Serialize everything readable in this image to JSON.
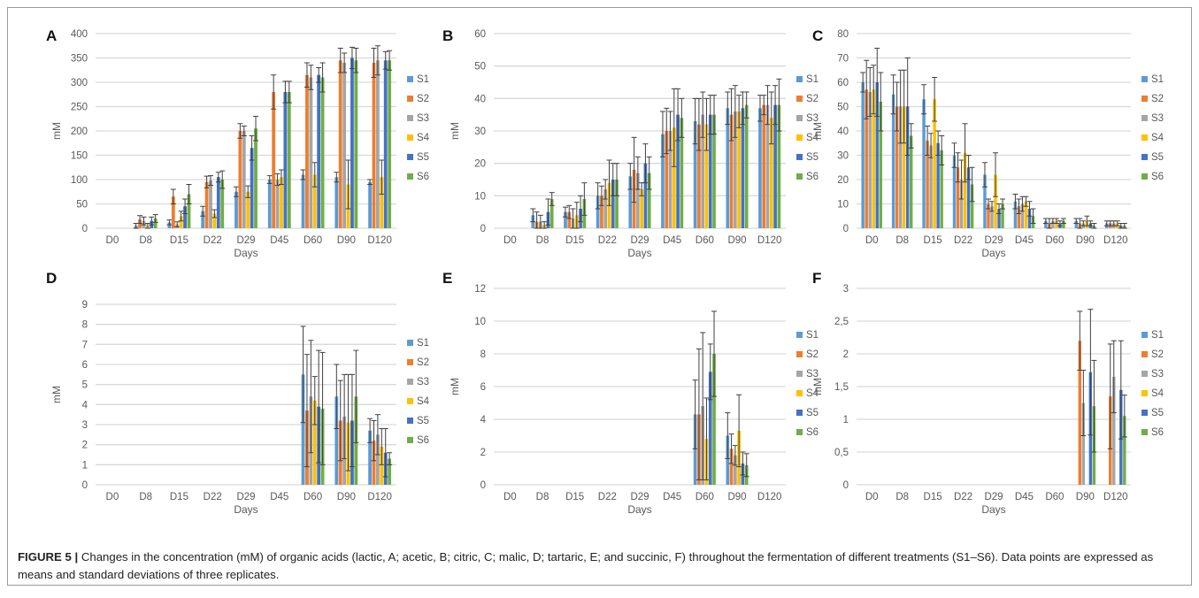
{
  "figure": {
    "caption_label": "FIGURE 5 |",
    "caption_text": "Changes in the concentration (mM) of organic acids (lactic, A; acetic, B; citric, C; malic, D; tartaric, E; and succinic, F) throughout the fermentation of different treatments (S1–S6). Data points are expressed as means and standard deviations of three replicates."
  },
  "colors": {
    "S1": "#5b9bd5",
    "S2": "#ed7d31",
    "S3": "#a5a5a5",
    "S4": "#ffc000",
    "S5": "#4472c4",
    "S6": "#70ad47",
    "grid": "#d9d9d9",
    "axis_text": "#595959",
    "error_bar": "#404040"
  },
  "chart_data": [
    {
      "panel": "A",
      "type": "bar",
      "xlabel": "Days",
      "ylabel": "mM",
      "ylim": [
        0,
        400
      ],
      "yticks": [
        0,
        50,
        100,
        150,
        200,
        250,
        300,
        350,
        400
      ],
      "ytick_labels": [
        "0",
        "50",
        "100",
        "150",
        "200",
        "250",
        "300",
        "350",
        "400"
      ],
      "categories": [
        "D0",
        "D8",
        "D15",
        "D22",
        "D29",
        "D45",
        "D60",
        "D90",
        "D120"
      ],
      "legend_position": "right",
      "grid": true,
      "series": [
        {
          "name": "S1",
          "values": [
            0,
            5,
            12,
            35,
            75,
            100,
            110,
            105,
            95
          ],
          "errors": [
            0,
            5,
            5,
            10,
            10,
            8,
            10,
            10,
            5
          ]
        },
        {
          "name": "S2",
          "values": [
            0,
            18,
            65,
            95,
            200,
            280,
            315,
            345,
            340
          ],
          "errors": [
            0,
            8,
            15,
            12,
            15,
            35,
            25,
            25,
            30
          ]
        },
        {
          "name": "S3",
          "values": [
            0,
            15,
            8,
            98,
            200,
            100,
            310,
            340,
            345
          ],
          "errors": [
            0,
            8,
            5,
            10,
            10,
            12,
            25,
            20,
            30
          ]
        },
        {
          "name": "S4",
          "values": [
            0,
            5,
            25,
            30,
            75,
            105,
            110,
            90,
            105
          ],
          "errors": [
            0,
            5,
            10,
            8,
            12,
            15,
            25,
            50,
            35
          ]
        },
        {
          "name": "S5",
          "values": [
            0,
            15,
            45,
            105,
            165,
            280,
            315,
            350,
            345
          ],
          "errors": [
            0,
            8,
            15,
            10,
            25,
            22,
            15,
            22,
            18
          ]
        },
        {
          "name": "S6",
          "values": [
            0,
            20,
            70,
            100,
            205,
            280,
            310,
            345,
            345
          ],
          "errors": [
            0,
            8,
            20,
            18,
            25,
            22,
            30,
            25,
            20
          ]
        }
      ]
    },
    {
      "panel": "B",
      "type": "bar",
      "xlabel": "Days",
      "ylabel": "mM",
      "ylim": [
        0,
        60
      ],
      "yticks": [
        0,
        10,
        20,
        30,
        40,
        50,
        60
      ],
      "ytick_labels": [
        "0",
        "10",
        "20",
        "30",
        "40",
        "50",
        "60"
      ],
      "categories": [
        "D0",
        "D8",
        "D15",
        "D22",
        "D29",
        "D45",
        "D60",
        "D90",
        "D120"
      ],
      "legend_position": "right",
      "grid": true,
      "series": [
        {
          "name": "S1",
          "values": [
            0,
            4,
            5,
            10,
            16,
            29,
            33,
            37,
            37
          ],
          "errors": [
            0,
            2,
            1.5,
            4,
            4,
            7,
            7,
            5,
            4
          ]
        },
        {
          "name": "S2",
          "values": [
            0,
            2,
            5,
            10,
            18,
            30,
            32,
            35,
            38
          ],
          "errors": [
            0,
            3,
            2,
            3,
            10,
            7,
            8,
            8,
            3
          ]
        },
        {
          "name": "S3",
          "values": [
            0,
            2,
            3,
            12,
            17,
            30,
            35,
            36,
            38
          ],
          "errors": [
            0,
            2,
            3,
            3,
            5,
            6,
            7,
            8,
            6
          ]
        },
        {
          "name": "S4",
          "values": [
            0,
            1,
            4,
            14,
            12,
            31,
            32,
            36,
            34
          ],
          "errors": [
            0,
            1,
            4,
            7,
            2,
            12,
            8,
            5,
            8
          ]
        },
        {
          "name": "S5",
          "values": [
            0,
            5,
            6,
            15,
            20,
            35,
            35,
            37,
            38
          ],
          "errors": [
            0,
            4,
            4,
            5,
            6,
            8,
            6,
            5,
            6
          ]
        },
        {
          "name": "S6",
          "values": [
            0,
            9,
            9,
            15,
            17,
            34,
            35,
            38,
            38
          ],
          "errors": [
            0,
            2,
            5,
            5,
            5,
            6,
            6,
            4,
            8
          ]
        }
      ]
    },
    {
      "panel": "C",
      "type": "bar",
      "xlabel": "Days",
      "ylabel": "mM",
      "ylim": [
        0,
        80
      ],
      "yticks": [
        0,
        10,
        20,
        30,
        40,
        50,
        60,
        70,
        80
      ],
      "ytick_labels": [
        "0",
        "10",
        "20",
        "30",
        "40",
        "50",
        "60",
        "70",
        "80"
      ],
      "categories": [
        "D0",
        "D8",
        "D15",
        "D22",
        "D29",
        "D45",
        "D60",
        "D90",
        "D120"
      ],
      "legend_position": "right",
      "grid": true,
      "series": [
        {
          "name": "S1",
          "values": [
            60,
            55,
            53,
            30,
            22,
            11,
            3,
            3,
            2
          ],
          "errors": [
            4,
            8,
            6,
            5,
            5,
            3,
            1,
            1,
            1
          ]
        },
        {
          "name": "S2",
          "values": [
            57,
            50,
            36,
            25,
            10,
            9,
            2,
            2,
            2
          ],
          "errors": [
            12,
            10,
            6,
            6,
            2,
            3,
            2,
            2,
            1
          ]
        },
        {
          "name": "S3",
          "values": [
            56,
            50,
            34,
            20,
            9,
            10,
            3,
            2,
            2
          ],
          "errors": [
            10,
            15,
            5,
            8,
            2,
            3,
            1,
            1,
            1
          ]
        },
        {
          "name": "S4",
          "values": [
            57,
            50,
            53,
            31,
            22,
            11,
            3,
            3,
            2
          ],
          "errors": [
            10,
            15,
            9,
            12,
            9,
            2,
            1,
            2,
            1
          ]
        },
        {
          "name": "S5",
          "values": [
            60,
            50,
            35,
            25,
            8,
            8,
            2,
            2,
            1
          ],
          "errors": [
            14,
            20,
            5,
            5,
            2,
            3,
            1,
            1,
            1
          ]
        },
        {
          "name": "S6",
          "values": [
            52,
            38,
            32,
            18,
            10,
            5,
            3,
            1,
            1
          ],
          "errors": [
            12,
            5,
            6,
            7,
            2,
            3,
            1,
            1,
            1
          ]
        }
      ]
    },
    {
      "panel": "D",
      "type": "bar",
      "xlabel": "Days",
      "ylabel": "mM",
      "ylim": [
        0,
        9
      ],
      "yticks": [
        0,
        1,
        2,
        3,
        4,
        5,
        6,
        7,
        8,
        9
      ],
      "ytick_labels": [
        "0",
        "1",
        "2",
        "3",
        "4",
        "5",
        "6",
        "7",
        "8",
        "9"
      ],
      "categories": [
        "D0",
        "D8",
        "D15",
        "D22",
        "D29",
        "D45",
        "D60",
        "D90",
        "D120"
      ],
      "legend_position": "right",
      "grid": true,
      "series": [
        {
          "name": "S1",
          "values": [
            0,
            0,
            0,
            0,
            0,
            0,
            5.5,
            4.4,
            2.7
          ],
          "errors": [
            0,
            0,
            0,
            0,
            0,
            0,
            2.4,
            1.6,
            0.6
          ]
        },
        {
          "name": "S2",
          "values": [
            0,
            0,
            0,
            0,
            0,
            0,
            3.7,
            3.2,
            2.2
          ],
          "errors": [
            0,
            0,
            0,
            0,
            0,
            0,
            2.8,
            2.0,
            1.0
          ]
        },
        {
          "name": "S3",
          "values": [
            0,
            0,
            0,
            0,
            0,
            0,
            4.4,
            3.4,
            2.5
          ],
          "errors": [
            0,
            0,
            0,
            0,
            0,
            0,
            2.8,
            2.1,
            1.0
          ]
        },
        {
          "name": "S4",
          "values": [
            0,
            0,
            0,
            0,
            0,
            0,
            4.2,
            3.1,
            1.9
          ],
          "errors": [
            0,
            0,
            0,
            0,
            0,
            0,
            1.2,
            2.4,
            0.9
          ]
        },
        {
          "name": "S5",
          "values": [
            0,
            0,
            0,
            0,
            0,
            0,
            3.9,
            3.2,
            1.6
          ],
          "errors": [
            0,
            0,
            0,
            0,
            0,
            0,
            2.8,
            2.3,
            1.2
          ]
        },
        {
          "name": "S6",
          "values": [
            0,
            0,
            0,
            0,
            0,
            0,
            3.8,
            4.4,
            1.3
          ],
          "errors": [
            0,
            0,
            0,
            0,
            0,
            0,
            2.8,
            2.3,
            0.3
          ]
        }
      ]
    },
    {
      "panel": "E",
      "type": "bar",
      "xlabel": "Days",
      "ylabel": "mM",
      "ylim": [
        0,
        12
      ],
      "yticks": [
        0,
        2,
        4,
        6,
        8,
        10,
        12
      ],
      "ytick_labels": [
        "0",
        "2",
        "4",
        "6",
        "8",
        "10",
        "12"
      ],
      "categories": [
        "D0",
        "D8",
        "D15",
        "D22",
        "D29",
        "D45",
        "D60",
        "D90",
        "D120"
      ],
      "legend_position": "right",
      "grid": true,
      "series": [
        {
          "name": "S1",
          "values": [
            0,
            0,
            0,
            0,
            0,
            0,
            4.3,
            3.0,
            0
          ],
          "errors": [
            0,
            0,
            0,
            0,
            0,
            0,
            2.1,
            1.4,
            0
          ]
        },
        {
          "name": "S2",
          "values": [
            0,
            0,
            0,
            0,
            0,
            0,
            4.3,
            2.2,
            0
          ],
          "errors": [
            0,
            0,
            0,
            0,
            0,
            0,
            4.0,
            0.9,
            0
          ]
        },
        {
          "name": "S3",
          "values": [
            0,
            0,
            0,
            0,
            0,
            0,
            4.8,
            1.8,
            0
          ],
          "errors": [
            0,
            0,
            0,
            0,
            0,
            0,
            4.5,
            0.6,
            0
          ]
        },
        {
          "name": "S4",
          "values": [
            0,
            0,
            0,
            0,
            0,
            0,
            2.8,
            3.3,
            0
          ],
          "errors": [
            0,
            0,
            0,
            0,
            0,
            0,
            2.5,
            2.2,
            0
          ]
        },
        {
          "name": "S5",
          "values": [
            0,
            0,
            0,
            0,
            0,
            0,
            6.9,
            1.3,
            0
          ],
          "errors": [
            0,
            0,
            0,
            0,
            0,
            0,
            1.7,
            0.7,
            0
          ]
        },
        {
          "name": "S6",
          "values": [
            0,
            0,
            0,
            0,
            0,
            0,
            8.0,
            1.2,
            0
          ],
          "errors": [
            0,
            0,
            0,
            0,
            0,
            0,
            2.6,
            0.7,
            0
          ]
        }
      ]
    },
    {
      "panel": "F",
      "type": "bar",
      "xlabel": "Days",
      "ylabel": "mM",
      "ylim": [
        0,
        3
      ],
      "yticks": [
        0,
        0.5,
        1,
        1.5,
        2,
        2.5,
        3
      ],
      "ytick_labels": [
        "0",
        "0,5",
        "1",
        "1,5",
        "2",
        "2,5",
        "3"
      ],
      "categories": [
        "D0",
        "D8",
        "D15",
        "D22",
        "D29",
        "D45",
        "D60",
        "D90",
        "D120"
      ],
      "legend_position": "right",
      "grid": true,
      "series": [
        {
          "name": "S1",
          "values": [
            0,
            0,
            0,
            0,
            0,
            0,
            0,
            0,
            0
          ],
          "errors": [
            0,
            0,
            0,
            0,
            0,
            0,
            0,
            0,
            0
          ]
        },
        {
          "name": "S2",
          "values": [
            0,
            0,
            0,
            0,
            0,
            0,
            0,
            2.2,
            1.35
          ],
          "errors": [
            0,
            0,
            0,
            0,
            0,
            0,
            0,
            0.45,
            0.8
          ]
        },
        {
          "name": "S3",
          "values": [
            0,
            0,
            0,
            0,
            0,
            0,
            0,
            1.25,
            1.65
          ],
          "errors": [
            0,
            0,
            0,
            0,
            0,
            0,
            0,
            0.5,
            0.55
          ]
        },
        {
          "name": "S4",
          "values": [
            0,
            0,
            0,
            0,
            0,
            0,
            0,
            0,
            0
          ],
          "errors": [
            0,
            0,
            0,
            0,
            0,
            0,
            0,
            0,
            0
          ]
        },
        {
          "name": "S5",
          "values": [
            0,
            0,
            0,
            0,
            0,
            0,
            0,
            1.72,
            1.45
          ],
          "errors": [
            0,
            0,
            0,
            0,
            0,
            0,
            0,
            0.96,
            0.75
          ]
        },
        {
          "name": "S6",
          "values": [
            0,
            0,
            0,
            0,
            0,
            0,
            0,
            1.2,
            1.05
          ],
          "errors": [
            0,
            0,
            0,
            0,
            0,
            0,
            0,
            0.7,
            0.32
          ]
        }
      ]
    }
  ]
}
